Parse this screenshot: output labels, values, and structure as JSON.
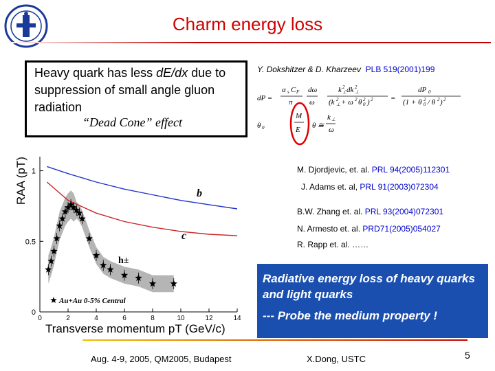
{
  "slide": {
    "title": "Charm energy loss",
    "bullet_main": "Heavy quark has less dE/dx due to suppression of small angle gluon radiation",
    "bullet_dedx": "dE/dx",
    "bullet_pre": "Heavy quark has less ",
    "bullet_post": " due to suppression of small angle gluon radiation",
    "dead_cone": "“Dead Cone” effect",
    "ref_dk_authors": "Y. Dokshitzer & D. Kharzeev",
    "ref_dk_journal": "PLB 519(2001)199",
    "references": [
      {
        "author": "M. Djordjevic, et. al.",
        "journal": "PRL 94(2005)112301"
      },
      {
        "author": "J. Adams et. al,",
        "journal": "PRL 91(2003)072304"
      },
      {
        "author": "B.W. Zhang et. al.",
        "journal": "PRL 93(2004)072301"
      },
      {
        "author": "N. Armesto et. al.",
        "journal": "PRD71(2005)054027"
      },
      {
        "author": "R. Rapp et. al.",
        "journal": "……"
      }
    ],
    "conclusion_1": "Radiative energy loss of heavy quarks and light quarks",
    "conclusion_2": "--- Probe the medium property !",
    "footer_left": "Aug. 4-9, 2005, QM2005, Budapest",
    "footer_mid": "X.Dong,  USTC",
    "page_number": "5"
  },
  "chart_data": {
    "type": "line",
    "xlabel": "Transverse momentum pT (GeV/c)",
    "ylabel": "RAA (pT)",
    "xlim": [
      0,
      14
    ],
    "ylim": [
      0,
      1.1
    ],
    "xticks": [
      "0",
      "2",
      "4",
      "6",
      "8",
      "10",
      "12",
      "14"
    ],
    "yticks": [
      "0",
      "0.5",
      "1"
    ],
    "legend": "Au+Au 0-5% Central",
    "series": [
      {
        "name": "b",
        "color": "#2233cc",
        "x": [
          0.5,
          2,
          4,
          6,
          8,
          10,
          12,
          14
        ],
        "y": [
          1.03,
          0.98,
          0.92,
          0.87,
          0.83,
          0.79,
          0.76,
          0.73
        ]
      },
      {
        "name": "c",
        "color": "#cc2222",
        "x": [
          0.5,
          2,
          4,
          6,
          8,
          10,
          12,
          14
        ],
        "y": [
          0.92,
          0.79,
          0.7,
          0.64,
          0.6,
          0.57,
          0.55,
          0.54
        ]
      },
      {
        "name": "h±",
        "color": "#000000",
        "x": [
          0.6,
          0.8,
          1.0,
          1.2,
          1.4,
          1.6,
          1.8,
          2.0,
          2.2,
          2.4,
          2.6,
          2.8,
          3.0,
          3.5,
          4.0,
          4.5,
          5.0,
          6.0,
          7.0,
          8.0,
          9.5
        ],
        "y": [
          0.3,
          0.36,
          0.43,
          0.52,
          0.61,
          0.66,
          0.71,
          0.74,
          0.76,
          0.74,
          0.72,
          0.7,
          0.66,
          0.52,
          0.4,
          0.33,
          0.3,
          0.26,
          0.24,
          0.2,
          0.2
        ]
      }
    ],
    "annotations": [
      "b",
      "c",
      "h±"
    ]
  }
}
